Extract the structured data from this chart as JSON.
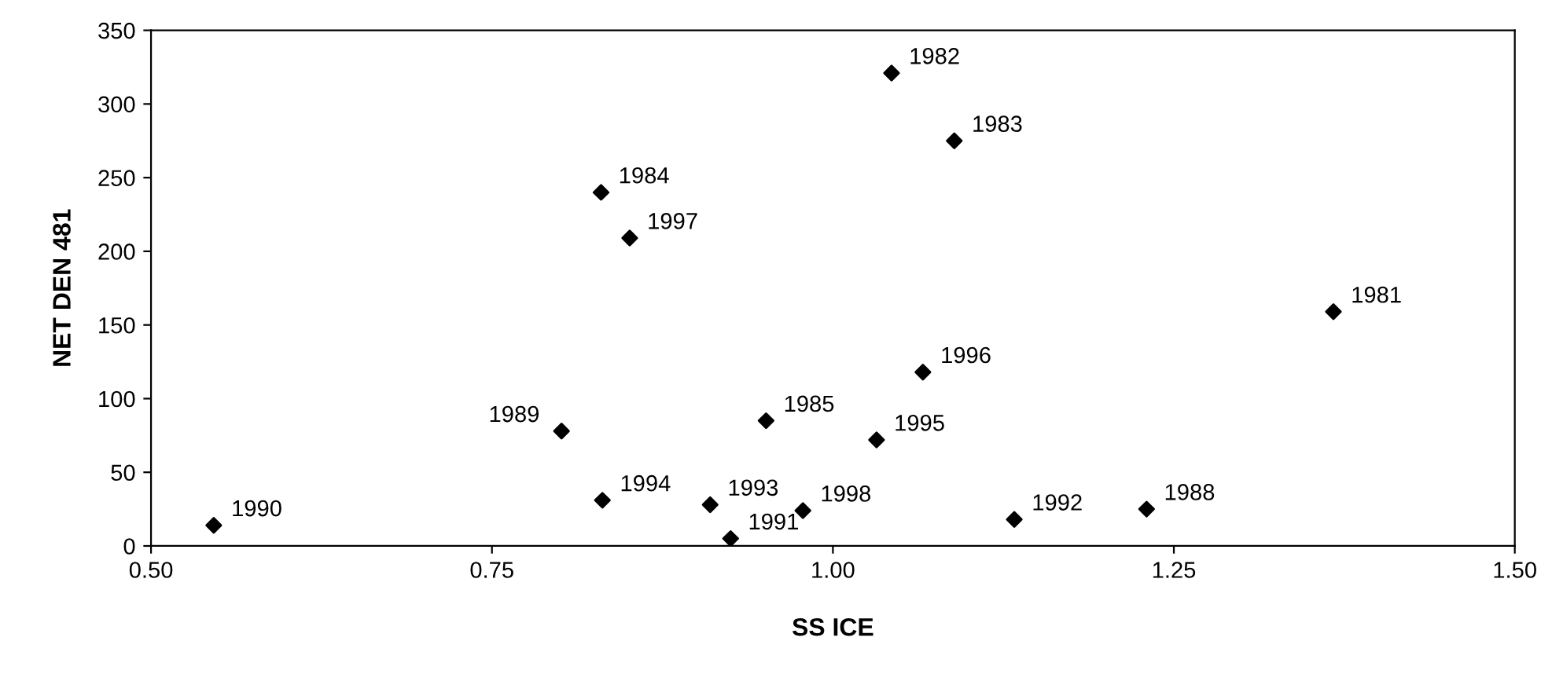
{
  "chart_data": {
    "type": "scatter",
    "xlabel": "SS ICE",
    "ylabel": "NET DEN 481",
    "x": [
      0.546,
      0.801,
      0.83,
      0.851,
      0.831,
      0.91,
      0.925,
      0.951,
      0.978,
      1.043,
      1.089,
      1.367,
      1.066,
      1.032,
      1.133,
      1.23
    ],
    "series": [
      {
        "color": "#000000",
        "values": [
          14,
          78,
          240,
          209,
          31,
          28,
          5,
          85,
          24,
          321,
          275,
          159,
          118,
          72,
          18,
          25
        ]
      }
    ],
    "annotations": [
      {
        "text": "1990",
        "x": 0.546,
        "y": 14
      },
      {
        "text": "1989",
        "x": 0.801,
        "y": 78
      },
      {
        "text": "1984",
        "x": 0.83,
        "y": 240
      },
      {
        "text": "1997",
        "x": 0.851,
        "y": 209
      },
      {
        "text": "1994",
        "x": 0.831,
        "y": 31
      },
      {
        "text": "1993",
        "x": 0.91,
        "y": 28
      },
      {
        "text": "1991",
        "x": 0.925,
        "y": 5
      },
      {
        "text": "1985",
        "x": 0.951,
        "y": 85
      },
      {
        "text": "1998",
        "x": 0.978,
        "y": 24
      },
      {
        "text": "1982",
        "x": 1.043,
        "y": 321
      },
      {
        "text": "1983",
        "x": 1.089,
        "y": 275
      },
      {
        "text": "1981",
        "x": 1.367,
        "y": 159
      },
      {
        "text": "1996",
        "x": 1.066,
        "y": 118
      },
      {
        "text": "1995",
        "x": 1.032,
        "y": 72
      },
      {
        "text": "1992",
        "x": 1.133,
        "y": 18
      },
      {
        "text": "1988",
        "x": 1.23,
        "y": 25
      }
    ],
    "xlim": [
      0.5,
      1.5
    ],
    "xticks": [
      {
        "value": 0.5,
        "label": "0.50"
      },
      {
        "value": 0.75,
        "label": "0.75"
      },
      {
        "value": 1.0,
        "label": "1.00"
      },
      {
        "value": 1.25,
        "label": "1.25"
      },
      {
        "value": 1.5,
        "label": "1.50"
      }
    ],
    "ylim": [
      0,
      350
    ],
    "yticks": [
      0,
      50,
      100,
      150,
      200,
      250,
      300,
      350
    ],
    "marker": "diamond"
  }
}
